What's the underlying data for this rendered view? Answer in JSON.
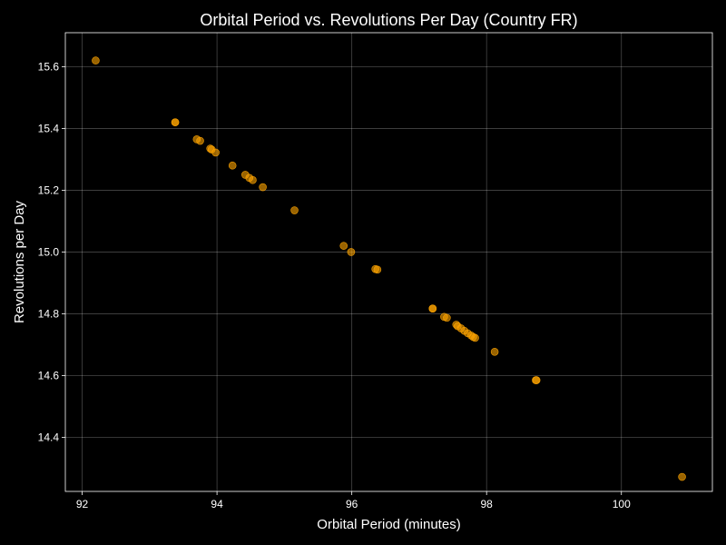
{
  "chart_data": {
    "type": "scatter",
    "title": "Orbital Period vs. Revolutions Per Day (Country FR)",
    "xlabel": "Orbital Period (minutes)",
    "ylabel": "Revolutions per Day",
    "xlim": [
      91.75,
      101.35
    ],
    "ylim": [
      14.225,
      15.71
    ],
    "xticks": [
      92,
      94,
      96,
      98,
      100
    ],
    "yticks": [
      14.4,
      14.6,
      14.8,
      15.0,
      15.2,
      15.4,
      15.6
    ],
    "xtick_labels": [
      "92",
      "94",
      "96",
      "98",
      "100"
    ],
    "ytick_labels": [
      "14.4",
      "14.6",
      "14.8",
      "15.0",
      "15.2",
      "15.4",
      "15.6"
    ],
    "grid": true,
    "background_color": "#000000",
    "point_color": "#ffa500",
    "point_opacity": 0.6,
    "points": [
      {
        "x": 92.2,
        "y": 15.62
      },
      {
        "x": 93.38,
        "y": 15.42
      },
      {
        "x": 93.38,
        "y": 15.42
      },
      {
        "x": 93.7,
        "y": 15.365
      },
      {
        "x": 93.75,
        "y": 15.36
      },
      {
        "x": 93.9,
        "y": 15.335
      },
      {
        "x": 93.92,
        "y": 15.332
      },
      {
        "x": 93.98,
        "y": 15.322
      },
      {
        "x": 94.23,
        "y": 15.28
      },
      {
        "x": 94.42,
        "y": 15.25
      },
      {
        "x": 94.48,
        "y": 15.24
      },
      {
        "x": 94.53,
        "y": 15.233
      },
      {
        "x": 94.68,
        "y": 15.21
      },
      {
        "x": 95.15,
        "y": 15.135
      },
      {
        "x": 95.88,
        "y": 15.02
      },
      {
        "x": 95.99,
        "y": 15.0
      },
      {
        "x": 96.35,
        "y": 14.945
      },
      {
        "x": 96.38,
        "y": 14.943
      },
      {
        "x": 97.2,
        "y": 14.817
      },
      {
        "x": 97.2,
        "y": 14.817
      },
      {
        "x": 97.37,
        "y": 14.79
      },
      {
        "x": 97.41,
        "y": 14.787
      },
      {
        "x": 97.55,
        "y": 14.765
      },
      {
        "x": 97.57,
        "y": 14.76
      },
      {
        "x": 97.62,
        "y": 14.753
      },
      {
        "x": 97.67,
        "y": 14.745
      },
      {
        "x": 97.72,
        "y": 14.737
      },
      {
        "x": 97.77,
        "y": 14.73
      },
      {
        "x": 97.8,
        "y": 14.725
      },
      {
        "x": 97.83,
        "y": 14.722
      },
      {
        "x": 98.12,
        "y": 14.677
      },
      {
        "x": 98.73,
        "y": 14.585
      },
      {
        "x": 98.74,
        "y": 14.585
      },
      {
        "x": 100.9,
        "y": 14.272
      }
    ]
  }
}
